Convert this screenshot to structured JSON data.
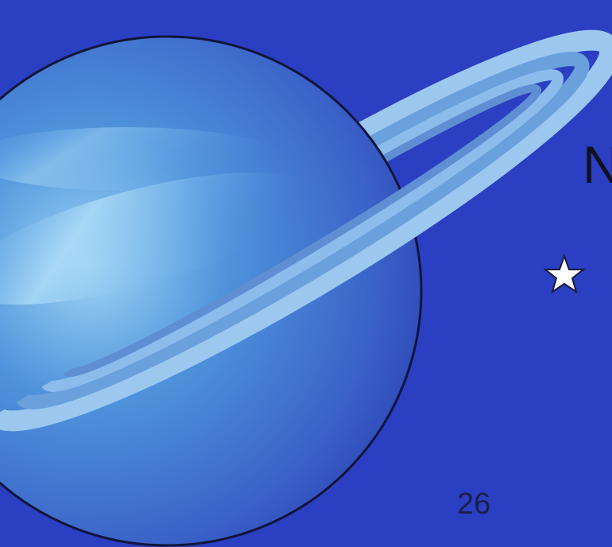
{
  "page": {
    "heading_fragment": "N",
    "page_number": "26"
  }
}
